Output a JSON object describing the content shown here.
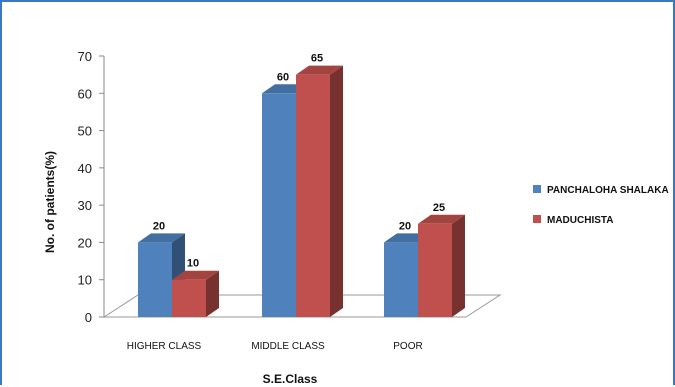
{
  "chart_data": {
    "type": "bar",
    "categories": [
      "HIGHER CLASS",
      "MIDDLE CLASS",
      "POOR"
    ],
    "series": [
      {
        "name": "PANCHALOHA SHALAKA",
        "values": [
          20,
          60,
          20
        ],
        "color": "#4f81bd"
      },
      {
        "name": "MADUCHISTA",
        "values": [
          10,
          65,
          25
        ],
        "color": "#c0504d"
      }
    ],
    "xlabel": "S.E.Class",
    "ylabel": "No. of patients(%)",
    "ylim": [
      0,
      70
    ],
    "yticks": [
      0,
      10,
      20,
      30,
      40,
      50,
      60,
      70
    ],
    "grid": false,
    "legend": "right",
    "style": "3d"
  }
}
